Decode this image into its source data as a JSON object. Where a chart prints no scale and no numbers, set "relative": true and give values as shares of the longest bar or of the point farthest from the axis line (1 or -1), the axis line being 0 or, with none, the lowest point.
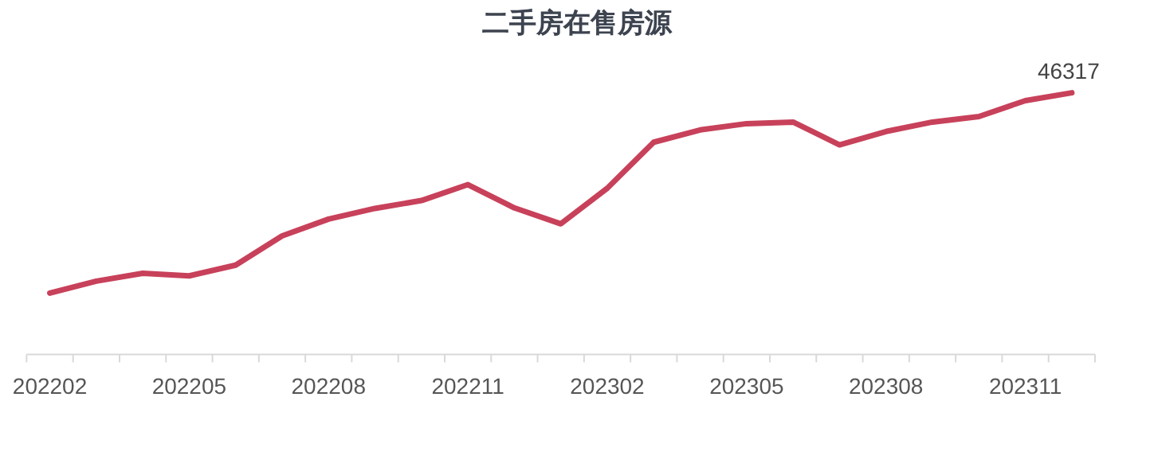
{
  "chart_data": {
    "type": "line",
    "title": "二手房在售房源",
    "categories": [
      "202202",
      null,
      null,
      "202205",
      null,
      null,
      "202208",
      null,
      null,
      "202211",
      null,
      null,
      "202302",
      null,
      null,
      "202305",
      null,
      null,
      "202308",
      null,
      null,
      "202311",
      null
    ],
    "color": "#c8415a",
    "relative": true,
    "values": [
      0.234,
      0.28,
      0.31,
      0.3,
      0.341,
      0.453,
      0.517,
      0.558,
      0.588,
      0.649,
      0.56,
      0.499,
      0.635,
      0.811,
      0.858,
      0.882,
      0.888,
      0.801,
      0.852,
      0.888,
      0.909,
      0.97,
      1
    ],
    "annotations": [
      "46317"
    ]
  }
}
